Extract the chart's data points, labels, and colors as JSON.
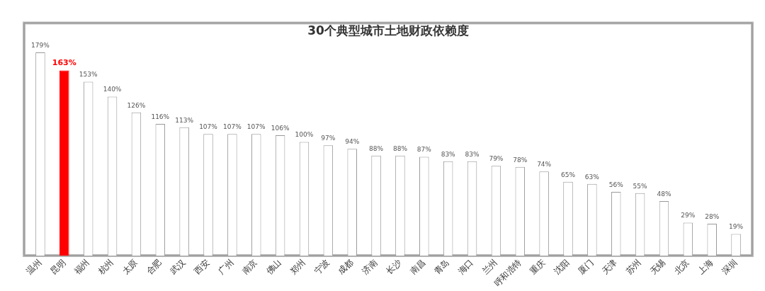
{
  "chart_data": {
    "type": "bar",
    "title": "30个典型城市土地财政依赖度",
    "categories": [
      "温州",
      "昆明",
      "福州",
      "杭州",
      "太原",
      "合肥",
      "武汉",
      "西安",
      "广州",
      "南京",
      "佛山",
      "郑州",
      "宁波",
      "成都",
      "济南",
      "长沙",
      "南昌",
      "青岛",
      "海口",
      "兰州",
      "呼和浩特",
      "重庆",
      "沈阳",
      "厦门",
      "天津",
      "苏州",
      "无锡",
      "北京",
      "上海",
      "深圳"
    ],
    "values": [
      179,
      163,
      153,
      140,
      126,
      116,
      113,
      107,
      107,
      107,
      106,
      100,
      97,
      94,
      88,
      88,
      87,
      83,
      83,
      79,
      78,
      74,
      65,
      63,
      56,
      55,
      48,
      29,
      28,
      19
    ],
    "colors": [
      "#ffffff",
      "#ff0000",
      "#ffffff",
      "#ffffff",
      "#ffffff",
      "#ffffff",
      "#ffffff",
      "#ffffff",
      "#ffffff",
      "#ffffff",
      "#ffffff",
      "#ffffff",
      "#ffffff",
      "#ffffff",
      "#ffffff",
      "#ffffff",
      "#ffffff",
      "#ffffff",
      "#ffffff",
      "#ffffff",
      "#ffffff",
      "#ffffff",
      "#ffffff",
      "#ffffff",
      "#ffffff",
      "#ffffff",
      "#ffffff",
      "#ffffff",
      "#ffffff",
      "#ffffff"
    ],
    "value_labels": [
      "179%",
      "163%",
      "153%",
      "140%",
      "126%",
      "116%",
      "113%",
      "107%",
      "107%",
      "107%",
      "106%",
      "100%",
      "97%",
      "94%",
      "88%",
      "88%",
      "87%",
      "83%",
      "83%",
      "79%",
      "78%",
      "74%",
      "65%",
      "63%",
      "56%",
      "55%",
      "48%",
      "29%",
      "28%",
      "19%"
    ],
    "legend": false,
    "grid": false
  }
}
